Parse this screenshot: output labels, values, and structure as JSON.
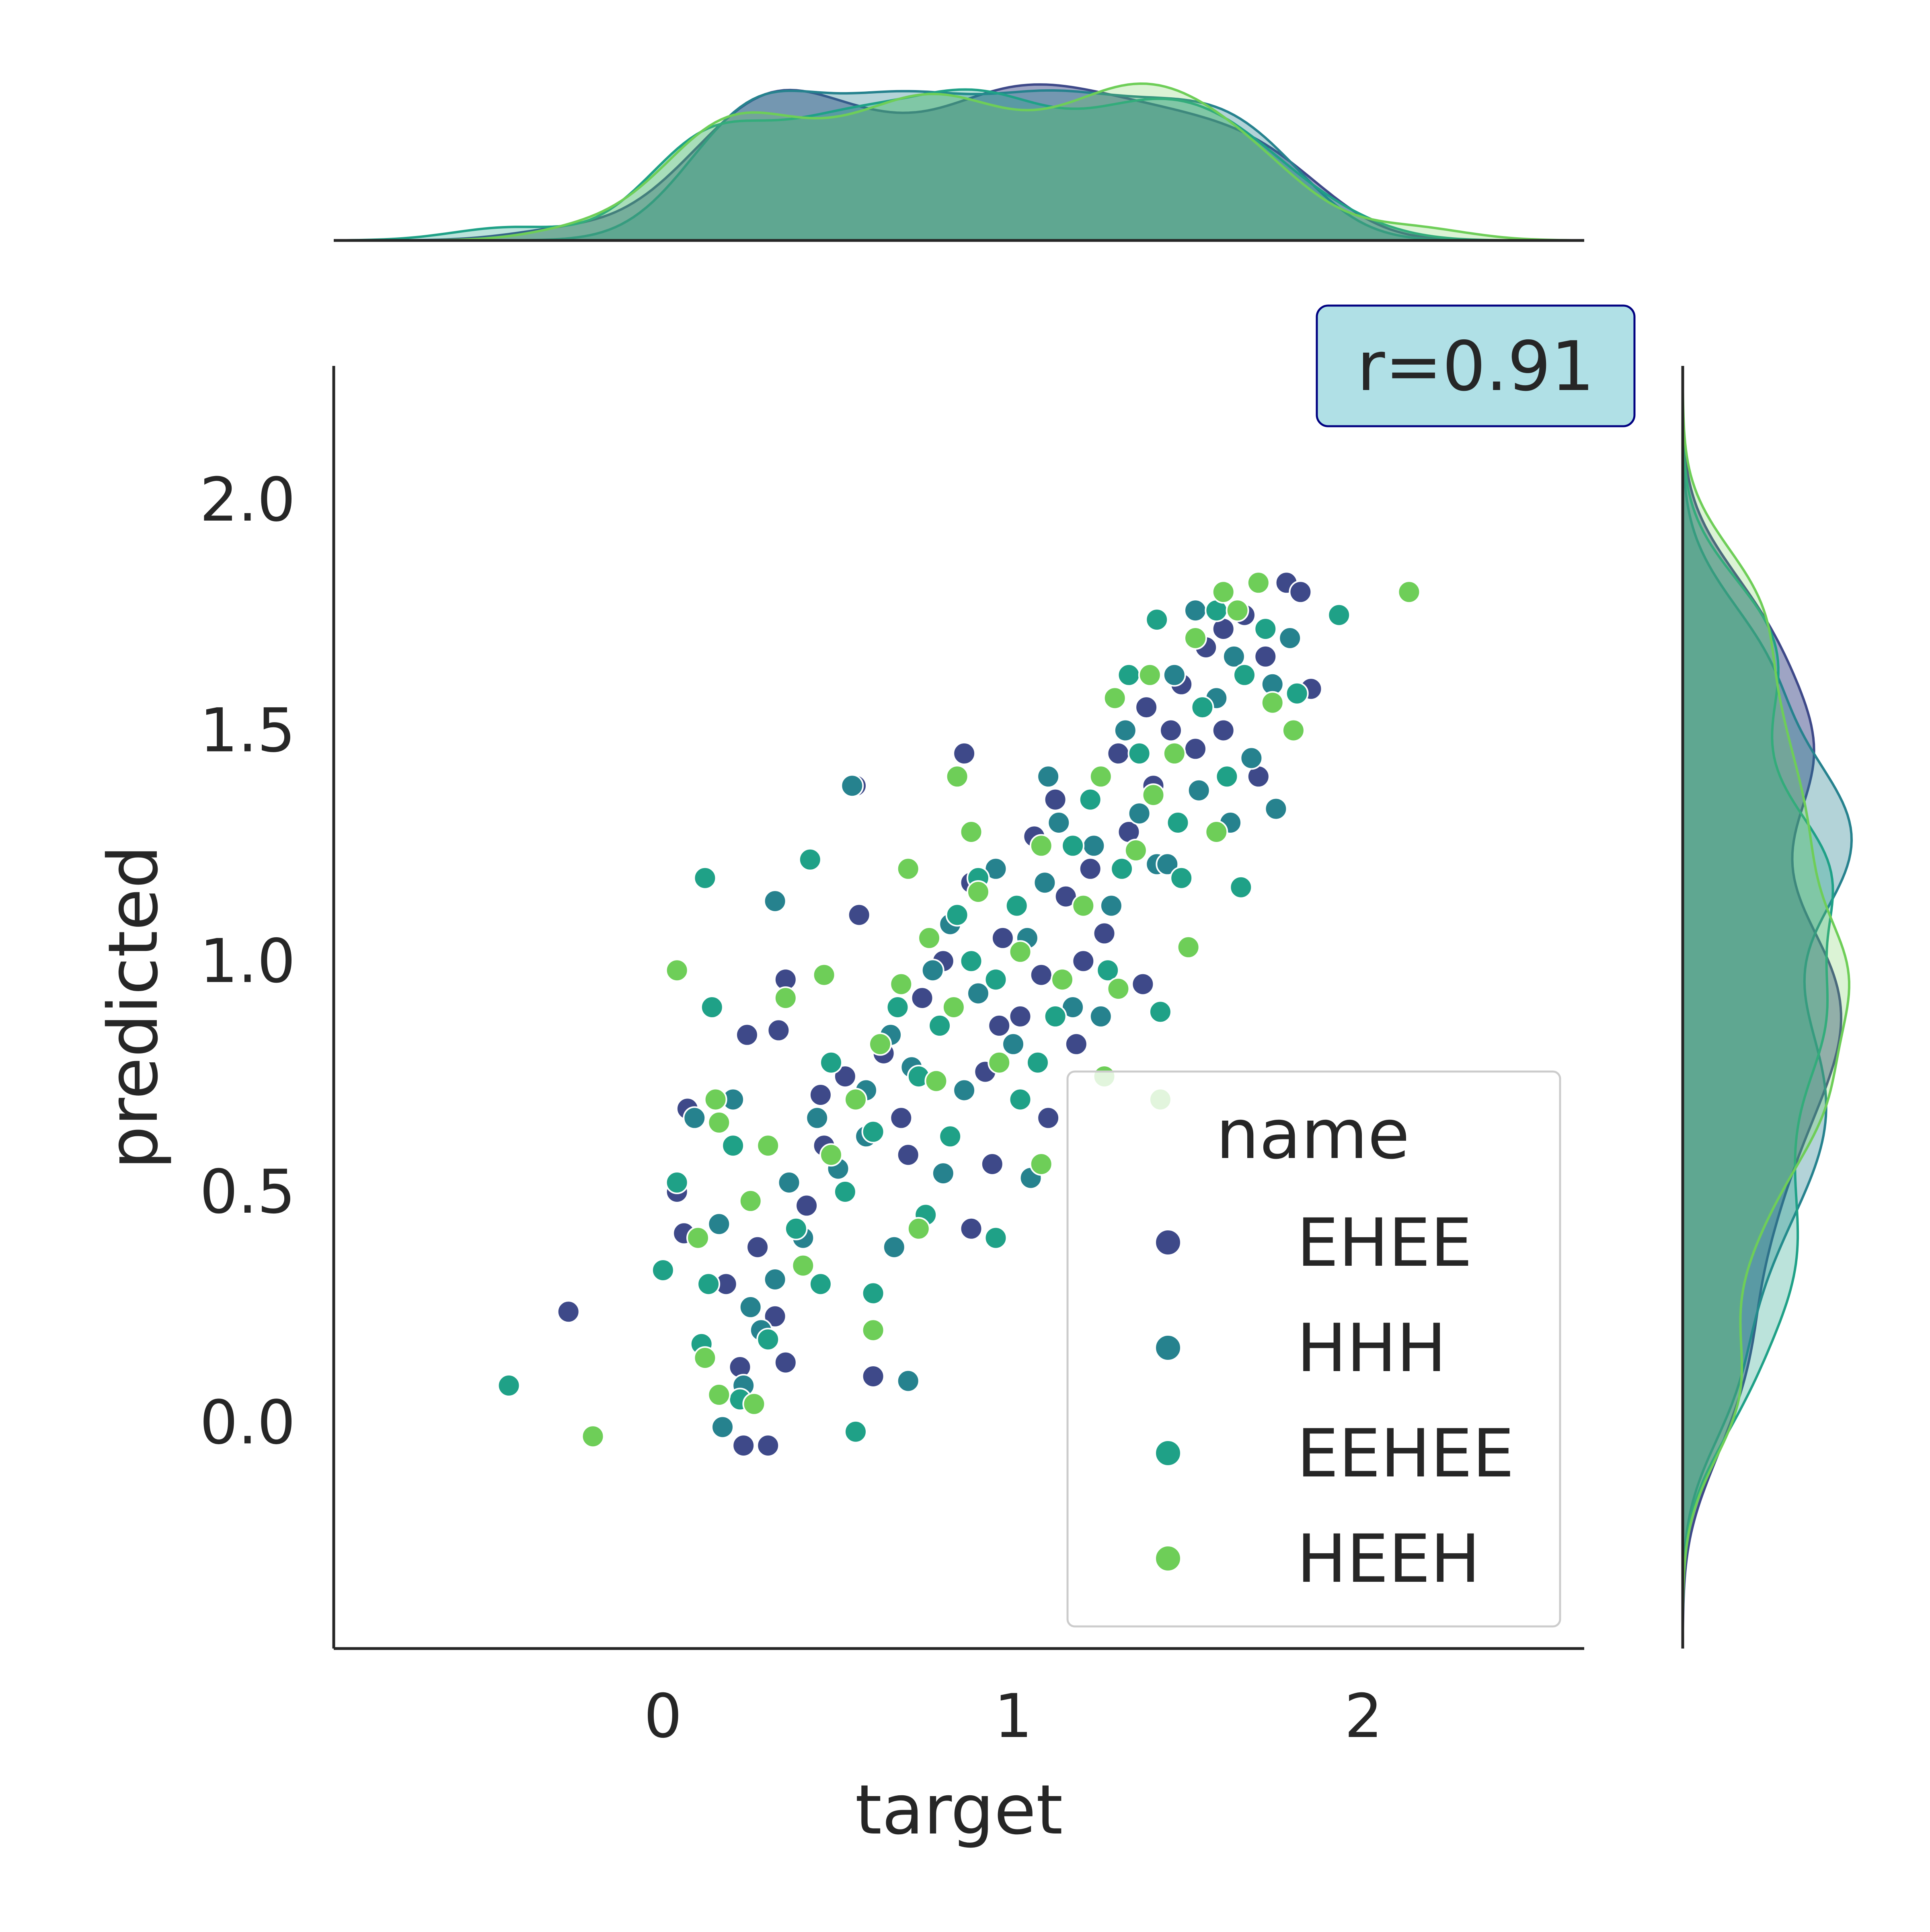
{
  "chart_data": {
    "type": "scatter",
    "title": "",
    "xlabel": "target",
    "ylabel": "predicted",
    "xlim": [
      -0.94,
      2.63
    ],
    "ylim": [
      -0.49,
      2.29
    ],
    "xticks": [
      0,
      1,
      2
    ],
    "xtick_labels": [
      "0",
      "1",
      "2"
    ],
    "yticks": [
      0.0,
      0.5,
      1.0,
      1.5,
      2.0
    ],
    "ytick_labels": [
      "0.0",
      "0.5",
      "1.0",
      "1.5",
      "2.0"
    ],
    "grid": false,
    "annotation": "r=0.91",
    "legend": {
      "title": "name",
      "placement": "lower-right",
      "entries": [
        "EHEE",
        "HHH",
        "EEHEE",
        "HEEH"
      ]
    },
    "marginals": {
      "type": "kde",
      "top": "density of target per series",
      "right": "density of predicted per series"
    },
    "series": [
      {
        "name": "EHEE",
        "color": "#3e4989",
        "points": [
          [
            -0.27,
            0.24
          ],
          [
            0.23,
            -0.05
          ],
          [
            0.3,
            -0.05
          ],
          [
            0.04,
            0.5
          ],
          [
            0.06,
            0.41
          ],
          [
            0.07,
            0.68
          ],
          [
            0.24,
            0.84
          ],
          [
            0.35,
            0.96
          ],
          [
            0.33,
            0.85
          ],
          [
            0.55,
            1.38
          ],
          [
            0.56,
            1.1
          ],
          [
            0.6,
            0.1
          ],
          [
            0.35,
            0.13
          ],
          [
            0.32,
            0.23
          ],
          [
            0.27,
            0.38
          ],
          [
            0.41,
            0.47
          ],
          [
            0.46,
            0.6
          ],
          [
            0.52,
            0.75
          ],
          [
            0.63,
            0.8
          ],
          [
            0.68,
            0.66
          ],
          [
            0.74,
            0.92
          ],
          [
            0.8,
            1.0
          ],
          [
            0.86,
            1.45
          ],
          [
            0.88,
            1.17
          ],
          [
            0.92,
            0.76
          ],
          [
            0.97,
            1.05
          ],
          [
            1.02,
            0.88
          ],
          [
            1.06,
            1.27
          ],
          [
            1.08,
            0.97
          ],
          [
            1.12,
            1.35
          ],
          [
            1.15,
            1.14
          ],
          [
            1.18,
            0.82
          ],
          [
            1.22,
            1.2
          ],
          [
            1.26,
            1.06
          ],
          [
            1.3,
            1.45
          ],
          [
            1.33,
            1.28
          ],
          [
            1.37,
            0.95
          ],
          [
            1.4,
            1.38
          ],
          [
            1.45,
            1.5
          ],
          [
            1.48,
            1.6
          ],
          [
            1.55,
            1.68
          ],
          [
            1.6,
            1.72
          ],
          [
            1.66,
            1.75
          ],
          [
            1.72,
            1.66
          ],
          [
            1.78,
            1.82
          ],
          [
            1.82,
            1.8
          ],
          [
            1.85,
            1.59
          ],
          [
            1.7,
            1.4
          ],
          [
            1.6,
            1.5
          ],
          [
            0.88,
            0.42
          ],
          [
            0.94,
            0.56
          ],
          [
            1.1,
            0.66
          ],
          [
            1.2,
            1.0
          ],
          [
            1.38,
            1.55
          ],
          [
            1.52,
            1.46
          ],
          [
            0.18,
            0.3
          ],
          [
            0.22,
            0.12
          ],
          [
            0.45,
            0.71
          ],
          [
            0.7,
            0.58
          ],
          [
            0.96,
            0.86
          ]
        ]
      },
      {
        "name": "HHH",
        "color": "#26828e",
        "points": [
          [
            0.17,
            -0.01
          ],
          [
            0.23,
            0.08
          ],
          [
            0.25,
            0.25
          ],
          [
            0.32,
            0.31
          ],
          [
            0.16,
            0.43
          ],
          [
            0.09,
            0.66
          ],
          [
            0.2,
            0.7
          ],
          [
            0.32,
            1.13
          ],
          [
            0.54,
            1.38
          ],
          [
            0.7,
            0.09
          ],
          [
            0.36,
            0.52
          ],
          [
            0.44,
            0.66
          ],
          [
            0.5,
            0.55
          ],
          [
            0.58,
            0.72
          ],
          [
            0.65,
            0.84
          ],
          [
            0.71,
            0.77
          ],
          [
            0.77,
            0.98
          ],
          [
            0.82,
            1.08
          ],
          [
            0.9,
            0.93
          ],
          [
            0.95,
            1.2
          ],
          [
            1.0,
            0.82
          ],
          [
            1.04,
            1.05
          ],
          [
            1.09,
            1.17
          ],
          [
            1.13,
            1.3
          ],
          [
            1.17,
            0.9
          ],
          [
            1.23,
            1.25
          ],
          [
            1.28,
            1.12
          ],
          [
            1.32,
            1.5
          ],
          [
            1.36,
            1.32
          ],
          [
            1.41,
            1.21
          ],
          [
            1.46,
            1.62
          ],
          [
            1.53,
            1.37
          ],
          [
            1.58,
            1.57
          ],
          [
            1.63,
            1.66
          ],
          [
            1.68,
            1.44
          ],
          [
            1.74,
            1.6
          ],
          [
            1.79,
            1.7
          ],
          [
            1.75,
            1.33
          ],
          [
            1.62,
            1.3
          ],
          [
            1.52,
            1.76
          ],
          [
            1.44,
            1.21
          ],
          [
            0.8,
            0.54
          ],
          [
            1.05,
            0.53
          ],
          [
            0.28,
            0.2
          ],
          [
            0.4,
            0.4
          ],
          [
            0.66,
            0.38
          ],
          [
            0.86,
            0.72
          ],
          [
            1.25,
            0.88
          ],
          [
            1.1,
            1.4
          ],
          [
            0.58,
            0.62
          ]
        ]
      },
      {
        "name": "EEHEE",
        "color": "#1fa187",
        "points": [
          [
            -0.44,
            0.08
          ],
          [
            0.0,
            0.33
          ],
          [
            0.04,
            0.52
          ],
          [
            0.13,
            0.3
          ],
          [
            0.11,
            0.17
          ],
          [
            0.14,
            0.9
          ],
          [
            0.12,
            1.18
          ],
          [
            0.42,
            1.22
          ],
          [
            0.55,
            -0.02
          ],
          [
            0.22,
            0.05
          ],
          [
            0.38,
            0.42
          ],
          [
            0.45,
            0.3
          ],
          [
            0.52,
            0.5
          ],
          [
            0.6,
            0.63
          ],
          [
            0.67,
            0.9
          ],
          [
            0.73,
            0.75
          ],
          [
            0.79,
            0.86
          ],
          [
            0.84,
            1.1
          ],
          [
            0.9,
            1.18
          ],
          [
            0.95,
            0.96
          ],
          [
            1.01,
            1.12
          ],
          [
            1.07,
            0.78
          ],
          [
            1.12,
            0.88
          ],
          [
            1.17,
            1.25
          ],
          [
            1.22,
            1.35
          ],
          [
            1.27,
            0.98
          ],
          [
            1.31,
            1.2
          ],
          [
            1.36,
            1.45
          ],
          [
            1.41,
            1.74
          ],
          [
            1.42,
            0.89
          ],
          [
            1.47,
            1.3
          ],
          [
            1.54,
            1.55
          ],
          [
            1.61,
            1.4
          ],
          [
            1.66,
            1.62
          ],
          [
            1.72,
            1.72
          ],
          [
            1.81,
            1.58
          ],
          [
            1.93,
            1.75
          ],
          [
            1.65,
            1.16
          ],
          [
            0.95,
            0.4
          ],
          [
            0.75,
            0.45
          ],
          [
            0.3,
            0.18
          ],
          [
            0.2,
            0.6
          ],
          [
            0.48,
            0.78
          ],
          [
            0.82,
            0.62
          ],
          [
            1.02,
            0.7
          ],
          [
            1.33,
            1.62
          ],
          [
            1.58,
            1.76
          ],
          [
            1.48,
            1.18
          ],
          [
            0.6,
            0.28
          ],
          [
            0.88,
            1.0
          ]
        ]
      },
      {
        "name": "HEEH",
        "color": "#6ece58",
        "points": [
          [
            -0.2,
            -0.03
          ],
          [
            0.04,
            0.98
          ],
          [
            0.12,
            0.14
          ],
          [
            0.16,
            0.06
          ],
          [
            0.26,
            0.04
          ],
          [
            0.16,
            0.65
          ],
          [
            0.15,
            0.7
          ],
          [
            0.35,
            0.92
          ],
          [
            0.46,
            0.97
          ],
          [
            0.6,
            0.2
          ],
          [
            0.7,
            1.2
          ],
          [
            0.84,
            1.4
          ],
          [
            0.88,
            1.28
          ],
          [
            0.73,
            0.42
          ],
          [
            1.08,
            0.56
          ],
          [
            1.26,
            0.75
          ],
          [
            1.42,
            0.7
          ],
          [
            1.5,
            1.03
          ],
          [
            1.29,
            1.57
          ],
          [
            1.39,
            1.62
          ],
          [
            1.6,
            1.8
          ],
          [
            2.13,
            1.8
          ],
          [
            1.74,
            1.56
          ],
          [
            1.8,
            1.5
          ],
          [
            0.4,
            0.34
          ],
          [
            0.48,
            0.58
          ],
          [
            0.55,
            0.7
          ],
          [
            0.62,
            0.82
          ],
          [
            0.68,
            0.95
          ],
          [
            0.76,
            1.05
          ],
          [
            0.83,
            0.9
          ],
          [
            0.9,
            1.15
          ],
          [
            0.96,
            0.78
          ],
          [
            1.02,
            1.02
          ],
          [
            1.08,
            1.25
          ],
          [
            1.14,
            0.96
          ],
          [
            1.2,
            1.12
          ],
          [
            1.25,
            1.4
          ],
          [
            1.3,
            0.94
          ],
          [
            1.35,
            1.24
          ],
          [
            1.4,
            1.36
          ],
          [
            1.46,
            1.45
          ],
          [
            1.52,
            1.7
          ],
          [
            1.58,
            1.28
          ],
          [
            1.64,
            1.76
          ],
          [
            1.7,
            1.82
          ],
          [
            0.25,
            0.48
          ],
          [
            0.3,
            0.6
          ],
          [
            0.1,
            0.4
          ],
          [
            0.78,
            0.74
          ]
        ]
      }
    ]
  }
}
